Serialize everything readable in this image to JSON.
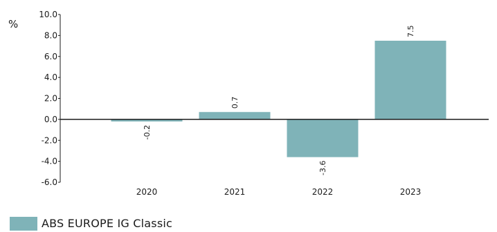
{
  "chart_data": {
    "type": "bar",
    "unit_label": "%",
    "categories": [
      "2020",
      "2021",
      "2022",
      "2023"
    ],
    "series": [
      {
        "name": "ABS EUROPE IG Classic",
        "values": [
          -0.2,
          0.7,
          -3.6,
          7.5
        ],
        "color": "#7fb3b8"
      }
    ],
    "ylim": [
      -6.0,
      10.0
    ],
    "yticks": [
      "10.0",
      "8.0",
      "6.0",
      "4.0",
      "2.0",
      "0.0",
      "-2.0",
      "-4.0",
      "-6.0"
    ],
    "value_labels": [
      "-0.2",
      "0.7",
      "-3.6",
      "7.5"
    ],
    "legend_position": "bottom-left",
    "grid": false
  }
}
